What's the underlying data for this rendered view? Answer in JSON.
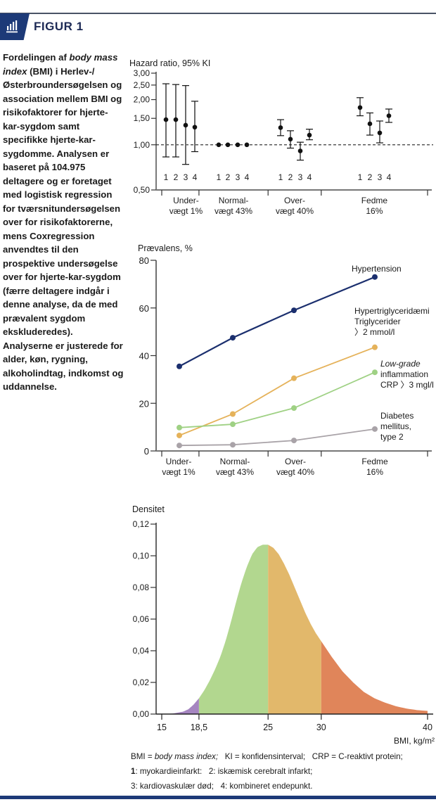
{
  "header": {
    "figure_label": "FIGUR 1",
    "icon": "bar-chart-icon",
    "accent_color": "#1d3a78"
  },
  "caption": {
    "parts": [
      {
        "text": "Fordelingen af ",
        "italic": false
      },
      {
        "text": "body mass index",
        "italic": true
      },
      {
        "text": " (BMI) i Herlev-/Østerbroundersøgelsen og association mellem BMI og risikofaktorer for hjerte-kar-sygdom samt specifikke hjerte-kar-sygdomme. Analysen er baseret på 104.975 deltagere og er foretaget med logistisk regression for tværsnitundersøgelsen over for risikofaktorerne, mens Coxregression anvendtes til den prospektive undersøgelse over for hjerte-kar-sygdom (færre deltagere indgår i denne analyse, da de med prævalent sygdom ekskluderedes). Analyserne er justerede for alder, køn, rygning, alkoholindtag, indkomst og uddannelse.",
        "italic": false
      }
    ]
  },
  "chart_data": [
    {
      "type": "scatter",
      "subtype": "forest-plot",
      "title": "",
      "ylabel": "Hazard ratio, 95% KI",
      "yscale": "log",
      "ylim": [
        0.5,
        3.0
      ],
      "yticks": [
        0.5,
        1.0,
        1.5,
        2.0,
        2.5,
        3.0
      ],
      "ytick_labels": [
        "0,50",
        "1,00",
        "1,50",
        "2,00",
        "2,50",
        "3,00"
      ],
      "reference_line": 1.0,
      "x_boundaries_bmi": [
        15,
        18.5,
        25,
        30,
        40
      ],
      "groups": [
        {
          "label_line1": "Under-",
          "label_line2": "vægt 1%",
          "points": [
            {
              "outcome": "1",
              "hr": 1.47,
              "lo": 0.83,
              "hi": 2.55
            },
            {
              "outcome": "2",
              "hr": 1.47,
              "lo": 0.83,
              "hi": 2.52
            },
            {
              "outcome": "3",
              "hr": 1.35,
              "lo": 0.74,
              "hi": 2.48
            },
            {
              "outcome": "4",
              "hr": 1.31,
              "lo": 0.9,
              "hi": 1.95
            }
          ]
        },
        {
          "label_line1": "Normal-",
          "label_line2": "vægt 43%",
          "points": [
            {
              "outcome": "1",
              "hr": 1.0,
              "lo": null,
              "hi": null
            },
            {
              "outcome": "2",
              "hr": 1.0,
              "lo": null,
              "hi": null
            },
            {
              "outcome": "3",
              "hr": 1.0,
              "lo": null,
              "hi": null
            },
            {
              "outcome": "4",
              "hr": 1.0,
              "lo": null,
              "hi": null
            }
          ]
        },
        {
          "label_line1": "Over-",
          "label_line2": "vægt 40%",
          "points": [
            {
              "outcome": "1",
              "hr": 1.3,
              "lo": 1.15,
              "hi": 1.47
            },
            {
              "outcome": "2",
              "hr": 1.09,
              "lo": 0.95,
              "hi": 1.24
            },
            {
              "outcome": "3",
              "hr": 0.91,
              "lo": 0.79,
              "hi": 1.04
            },
            {
              "outcome": "4",
              "hr": 1.16,
              "lo": 1.08,
              "hi": 1.27
            }
          ]
        },
        {
          "label_line1": "Fedme",
          "label_line2": "16%",
          "points": [
            {
              "outcome": "1",
              "hr": 1.77,
              "lo": 1.56,
              "hi": 2.06
            },
            {
              "outcome": "2",
              "hr": 1.38,
              "lo": 1.16,
              "hi": 1.63
            },
            {
              "outcome": "3",
              "hr": 1.2,
              "lo": 1.03,
              "hi": 1.44
            },
            {
              "outcome": "4",
              "hr": 1.56,
              "lo": 1.41,
              "hi": 1.73
            }
          ]
        }
      ]
    },
    {
      "type": "line",
      "title": "",
      "ylabel": "Prævalens, %",
      "ylim": [
        0,
        80
      ],
      "yticks": [
        0,
        20,
        40,
        60,
        80
      ],
      "categories": [
        "Under- vægt 1%",
        "Normal- vægt 43%",
        "Over- vægt 40%",
        "Fedme 16%"
      ],
      "category_lines": [
        [
          "Under-",
          "vægt 1%"
        ],
        [
          "Normal-",
          "vægt 43%"
        ],
        [
          "Over-",
          "vægt 40%"
        ],
        [
          "Fedme",
          "16%"
        ]
      ],
      "category_bmi_centers": [
        16.75,
        21.75,
        27.5,
        35
      ],
      "x_boundaries_bmi": [
        15,
        18.5,
        25,
        30,
        40
      ],
      "series": [
        {
          "name": "Hypertension",
          "label_lines": [
            {
              "text": "Hypertension",
              "italic": false
            }
          ],
          "color": "#1b2f6e",
          "values": [
            35.5,
            47.5,
            59.0,
            73.0
          ]
        },
        {
          "name": "Hypertriglyceridæmi Triglycerider > 2 mmol/l",
          "label_lines": [
            {
              "text": "Hypertriglyceridæmi",
              "italic": false
            },
            {
              "text": "Triglycerider",
              "italic": false
            },
            {
              "text": "〉2 mmol/l",
              "italic": false
            }
          ],
          "color": "#e5b25a",
          "values": [
            6.5,
            15.5,
            30.5,
            43.5
          ]
        },
        {
          "name": "Low-grade inflammation CRP > 3 mgl/l",
          "label_lines": [
            {
              "text": "Low-grade",
              "italic": true
            },
            {
              "text": "inflammation",
              "italic": false
            },
            {
              "text": "CRP 〉3 mgl/l",
              "italic": false
            }
          ],
          "color": "#9fd184",
          "values": [
            9.8,
            11.2,
            18.0,
            33.0
          ]
        },
        {
          "name": "Diabetes mellitus, type 2",
          "label_lines": [
            {
              "text": "Diabetes",
              "italic": false
            },
            {
              "text": "mellitus,",
              "italic": false
            },
            {
              "text": "type 2",
              "italic": false
            }
          ],
          "color": "#a9a3a8",
          "values": [
            2.3,
            2.6,
            4.4,
            9.2
          ]
        }
      ]
    },
    {
      "type": "area",
      "title": "",
      "ylabel": "Densitet",
      "xlabel": "BMI, kg/m²",
      "xlim": [
        15,
        40
      ],
      "ylim": [
        0,
        0.12
      ],
      "xticks": [
        15,
        18.5,
        25,
        30,
        40
      ],
      "xtick_labels": [
        "15",
        "18,5",
        "25",
        "30",
        "40"
      ],
      "yticks": [
        0,
        0.02,
        0.04,
        0.06,
        0.08,
        0.1,
        0.12
      ],
      "ytick_labels": [
        "0,00",
        "0,02",
        "0,04",
        "0,06",
        "0,08",
        "0,10",
        "0,12"
      ],
      "x": [
        15,
        16,
        17,
        17.5,
        18,
        18.5,
        19,
        19.5,
        20,
        20.5,
        21,
        21.5,
        22,
        22.5,
        23,
        23.5,
        24,
        24.5,
        25,
        25.5,
        26,
        26.5,
        27,
        27.5,
        28,
        28.5,
        29,
        29.5,
        30,
        31,
        32,
        33,
        34,
        35,
        36,
        37,
        38,
        39,
        40
      ],
      "y": [
        0.0,
        0.0003,
        0.0015,
        0.003,
        0.006,
        0.01,
        0.015,
        0.021,
        0.028,
        0.036,
        0.046,
        0.058,
        0.071,
        0.083,
        0.093,
        0.101,
        0.1055,
        0.107,
        0.107,
        0.105,
        0.101,
        0.095,
        0.088,
        0.08,
        0.072,
        0.064,
        0.057,
        0.051,
        0.046,
        0.036,
        0.027,
        0.02,
        0.014,
        0.01,
        0.0072,
        0.005,
        0.0035,
        0.0025,
        0.002
      ],
      "segments": [
        {
          "name": "Undervægt",
          "from": 15,
          "to": 18.5,
          "color": "#a585c0"
        },
        {
          "name": "Normalvægt",
          "from": 18.5,
          "to": 25,
          "color": "#b2d78f"
        },
        {
          "name": "Overvægt",
          "from": 25,
          "to": 30,
          "color": "#e2b86b"
        },
        {
          "name": "Fedme",
          "from": 30,
          "to": 40,
          "color": "#e0855a"
        }
      ]
    }
  ],
  "footnote": {
    "line1_parts": [
      {
        "text": "BMI = ",
        "style": "normal"
      },
      {
        "text": "body mass index;",
        "style": "italic"
      },
      {
        "text": "   KI = konfidensinterval;   CRP = C-reaktivt protein;",
        "style": "normal"
      }
    ],
    "line2_parts": [
      {
        "text": "1",
        "style": "bold"
      },
      {
        "text": ": myokardieinfarkt:   2: iskæmisk cerebralt infarkt;",
        "style": "normal"
      }
    ],
    "line3_parts": [
      {
        "text": "3: kardiovaskulær død;   4: kombineret endepunkt.",
        "style": "normal"
      }
    ]
  }
}
